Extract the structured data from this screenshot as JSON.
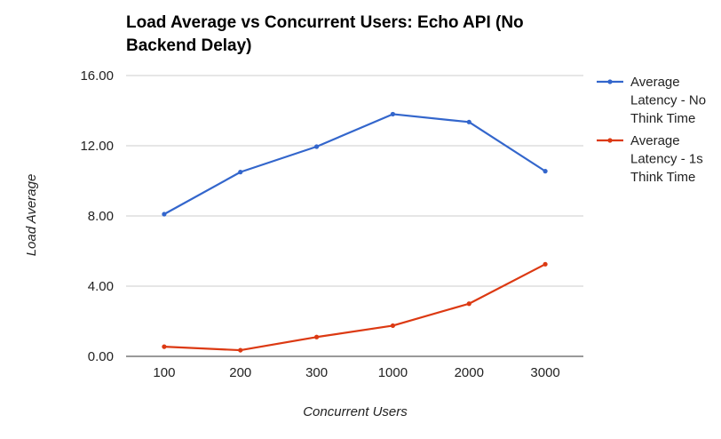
{
  "chart_data": {
    "type": "line",
    "title_lines": [
      "Load Average vs Concurrent Users: Echo API (No",
      "Backend Delay)"
    ],
    "xlabel": "Concurrent Users",
    "ylabel": "Load Average",
    "categories": [
      "100",
      "200",
      "300",
      "1000",
      "2000",
      "3000"
    ],
    "ylim": [
      0,
      16
    ],
    "yticks": [
      {
        "value": 0,
        "label": "0.00"
      },
      {
        "value": 4,
        "label": "4.00"
      },
      {
        "value": 8,
        "label": "8.00"
      },
      {
        "value": 12,
        "label": "12.00"
      },
      {
        "value": 16,
        "label": "16.00"
      }
    ],
    "grid": true,
    "legend_position": "right",
    "series": [
      {
        "name": "Average Latency - No Think Time",
        "legend_lines": [
          "Average",
          "Latency - No",
          "Think Time"
        ],
        "color": "#3366cc",
        "values": [
          8.1,
          10.5,
          11.95,
          13.8,
          13.35,
          10.55
        ]
      },
      {
        "name": "Average Latency - 1s Think Time",
        "legend_lines": [
          "Average",
          "Latency - 1s",
          "Think Time"
        ],
        "color": "#dc3912",
        "values": [
          0.55,
          0.35,
          1.1,
          1.75,
          3.0,
          5.25
        ]
      }
    ]
  }
}
